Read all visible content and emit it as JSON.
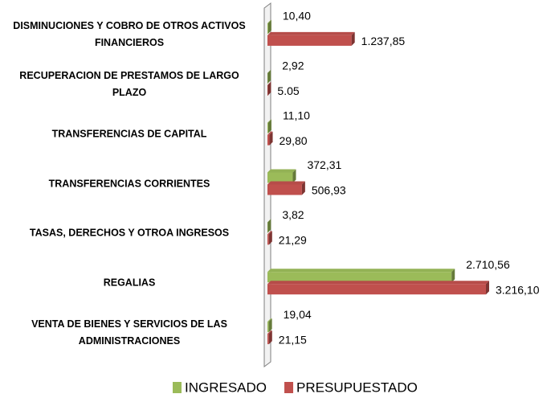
{
  "chart_data": {
    "type": "bar",
    "orientation": "horizontal",
    "categories": [
      "DISMINUCIONES Y COBRO DE OTROS ACTIVOS FINANCIEROS",
      "RECUPERACION DE PRESTAMOS DE LARGO PLAZO",
      "TRANSFERENCIAS DE CAPITAL",
      "TRANSFERENCIAS CORRIENTES",
      "TASAS, DERECHOS Y OTROA INGRESOS",
      "REGALIAS",
      "VENTA DE BIENES Y SERVICIOS DE LAS ADMINISTRACIONES"
    ],
    "series": [
      {
        "name": "INGRESADO",
        "color": "#9bbb59",
        "values": [
          10.4,
          2.92,
          11.1,
          372.31,
          3.82,
          2710.56,
          19.04
        ],
        "value_labels": [
          "10,40",
          "2,92",
          "11,10",
          "372,31",
          "3,82",
          "2.710,56",
          "19,04"
        ]
      },
      {
        "name": "PRESUPUESTADO",
        "color": "#c0504d",
        "values": [
          1237.85,
          5.05,
          29.8,
          506.93,
          21.29,
          3216.1,
          21.15
        ],
        "value_labels": [
          "1.237,85",
          "5.05",
          "29,80",
          "506,93",
          "21,29",
          "3.216,10",
          "21,15"
        ]
      }
    ],
    "xlim": [
      0,
      3500
    ],
    "legend": "bottom"
  }
}
